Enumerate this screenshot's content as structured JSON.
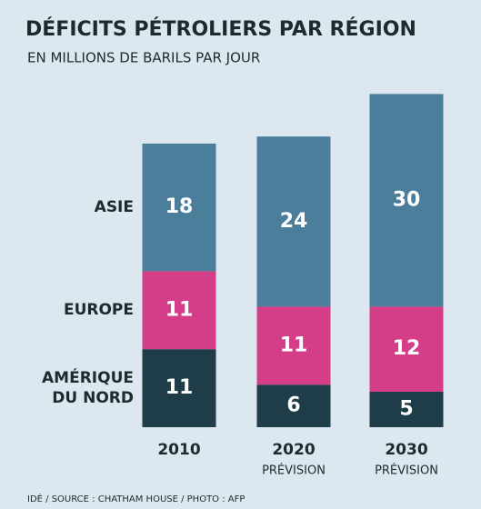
{
  "chart_data": {
    "type": "stacked_bar",
    "title": "DÉFICITS PÉTROLIERS PAR RÉGION",
    "subtitle": "EN MILLIONS DE BARILS PAR JOUR",
    "source": "IDÉ / SOURCE : CHATHAM HOUSE / PHOTO : AFP",
    "categories": [
      "2010",
      "2020",
      "2030"
    ],
    "category_notes": [
      null,
      "PRÉVISION",
      "PRÉVISION"
    ],
    "series": [
      {
        "name": "AMÉRIQUE DU NORD",
        "color": "#1f3d48",
        "values": [
          11,
          6,
          5
        ]
      },
      {
        "name": "EUROPE",
        "color": "#d43d88",
        "values": [
          11,
          11,
          12
        ]
      },
      {
        "name": "ASIE",
        "color": "#4a7e9b",
        "values": [
          18,
          24,
          30
        ]
      }
    ]
  }
}
